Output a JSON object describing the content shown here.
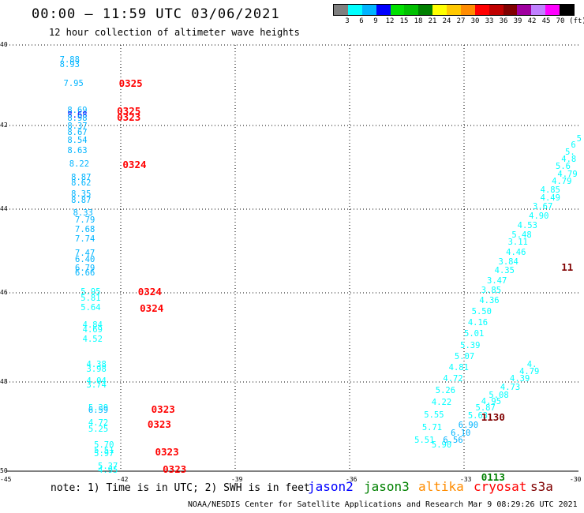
{
  "header": {
    "title": "00:00 – 11:59 UTC 03/06/2021",
    "subtitle": "12 hour collection of altimeter wave heights"
  },
  "legend": {
    "colors": [
      "#7f7f7f",
      "#00ffff",
      "#00b4ff",
      "#0000ff",
      "#00e000",
      "#00c000",
      "#008000",
      "#ffff00",
      "#ffc800",
      "#ff8c00",
      "#ff0000",
      "#c00000",
      "#800000",
      "#a000a0",
      "#c080ff",
      "#ff00ff",
      "#000000"
    ],
    "ticks": [
      "3",
      "6",
      "9",
      "12",
      "15",
      "18",
      "21",
      "24",
      "27",
      "30",
      "33",
      "36",
      "39",
      "42",
      "45",
      "70",
      "(ft)"
    ]
  },
  "map": {
    "lat_labels": [
      "40",
      "42",
      "44",
      "46",
      "48",
      "50"
    ],
    "lon_labels": [
      "-45",
      "-42",
      "-39",
      "-36",
      "-33",
      "-30"
    ],
    "lat_range": [
      40,
      50
    ],
    "lon_range": [
      -45,
      -30
    ],
    "observations": [
      {
        "lon": -43.6,
        "lat": 40.35,
        "text": "7.88",
        "color": "#00b4ff"
      },
      {
        "lon": -43.6,
        "lat": 40.48,
        "text": "8.93",
        "color": "#00b4ff"
      },
      {
        "lon": -43.5,
        "lat": 40.95,
        "text": "7.95",
        "color": "#00b4ff"
      },
      {
        "lon": -43.4,
        "lat": 41.6,
        "text": "8.69",
        "color": "#00b4ff"
      },
      {
        "lon": -43.4,
        "lat": 41.73,
        "text": "8.68",
        "color": "#0000ff"
      },
      {
        "lon": -43.4,
        "lat": 41.8,
        "text": "8.98",
        "color": "#00b4ff"
      },
      {
        "lon": -43.4,
        "lat": 42.0,
        "text": "8.37",
        "color": "#00b4ff"
      },
      {
        "lon": -43.4,
        "lat": 42.15,
        "text": "8.67",
        "color": "#00b4ff"
      },
      {
        "lon": -43.4,
        "lat": 42.34,
        "text": "8.54",
        "color": "#00b4ff"
      },
      {
        "lon": -43.4,
        "lat": 42.58,
        "text": "8.63",
        "color": "#00b4ff"
      },
      {
        "lon": -43.35,
        "lat": 42.9,
        "text": "8.22",
        "color": "#00b4ff"
      },
      {
        "lon": -43.3,
        "lat": 43.22,
        "text": "8.87",
        "color": "#00b4ff"
      },
      {
        "lon": -43.3,
        "lat": 43.36,
        "text": "8.62",
        "color": "#00b4ff"
      },
      {
        "lon": -43.3,
        "lat": 43.63,
        "text": "8.35",
        "color": "#00b4ff"
      },
      {
        "lon": -43.3,
        "lat": 43.77,
        "text": "8.87",
        "color": "#00b4ff"
      },
      {
        "lon": -43.25,
        "lat": 44.07,
        "text": "8.33",
        "color": "#00b4ff"
      },
      {
        "lon": -43.2,
        "lat": 44.25,
        "text": "7.79",
        "color": "#00b4ff"
      },
      {
        "lon": -43.2,
        "lat": 44.48,
        "text": "7.68",
        "color": "#00b4ff"
      },
      {
        "lon": -43.2,
        "lat": 44.7,
        "text": "7.74",
        "color": "#00b4ff"
      },
      {
        "lon": -43.2,
        "lat": 45.03,
        "text": "7.47",
        "color": "#00b4ff"
      },
      {
        "lon": -43.2,
        "lat": 45.18,
        "text": "6.40",
        "color": "#00b4ff"
      },
      {
        "lon": -43.2,
        "lat": 45.4,
        "text": "6.79",
        "color": "#00b4ff"
      },
      {
        "lon": -43.2,
        "lat": 45.5,
        "text": "6.66",
        "color": "#00b4ff"
      },
      {
        "lon": -43.05,
        "lat": 45.97,
        "text": "5.95",
        "color": "#00ffff"
      },
      {
        "lon": -43.05,
        "lat": 46.1,
        "text": "5.81",
        "color": "#00ffff"
      },
      {
        "lon": -43.05,
        "lat": 46.32,
        "text": "5.64",
        "color": "#00ffff"
      },
      {
        "lon": -43.0,
        "lat": 46.7,
        "text": "4.84",
        "color": "#00ffff"
      },
      {
        "lon": -43.0,
        "lat": 46.82,
        "text": "4.69",
        "color": "#00ffff"
      },
      {
        "lon": -43.0,
        "lat": 47.02,
        "text": "4.52",
        "color": "#00ffff"
      },
      {
        "lon": -42.9,
        "lat": 47.6,
        "text": "4.38",
        "color": "#00ffff"
      },
      {
        "lon": -42.9,
        "lat": 47.7,
        "text": "3.98",
        "color": "#00ffff"
      },
      {
        "lon": -42.9,
        "lat": 47.97,
        "text": "4.04",
        "color": "#00ffff"
      },
      {
        "lon": -42.9,
        "lat": 48.05,
        "text": "3.74",
        "color": "#00ffff"
      },
      {
        "lon": -42.85,
        "lat": 48.57,
        "text": "5.39",
        "color": "#00ffff"
      },
      {
        "lon": -42.85,
        "lat": 48.62,
        "text": "6.59",
        "color": "#00b4ff"
      },
      {
        "lon": -42.85,
        "lat": 48.9,
        "text": "4.72",
        "color": "#00ffff"
      },
      {
        "lon": -42.85,
        "lat": 49.05,
        "text": "5.25",
        "color": "#00ffff"
      },
      {
        "lon": -42.7,
        "lat": 49.4,
        "text": "5.70",
        "color": "#00ffff"
      },
      {
        "lon": -42.7,
        "lat": 49.52,
        "text": "5.51",
        "color": "#00ffff"
      },
      {
        "lon": -42.7,
        "lat": 49.6,
        "text": "5.97",
        "color": "#00ffff"
      },
      {
        "lon": -42.6,
        "lat": 49.88,
        "text": "5.37",
        "color": "#00ffff"
      },
      {
        "lon": -42.6,
        "lat": 49.97,
        "text": "4.95",
        "color": "#00ffff"
      },
      {
        "lon": -30.05,
        "lat": 42.3,
        "text": "5",
        "color": "#00ffff"
      },
      {
        "lon": -30.2,
        "lat": 42.45,
        "text": "6",
        "color": "#00ffff"
      },
      {
        "lon": -30.35,
        "lat": 42.63,
        "text": "5.",
        "color": "#00ffff"
      },
      {
        "lon": -30.45,
        "lat": 42.8,
        "text": "4.8",
        "color": "#00ffff"
      },
      {
        "lon": -30.6,
        "lat": 42.97,
        "text": "5.6",
        "color": "#00ffff"
      },
      {
        "lon": -30.55,
        "lat": 43.15,
        "text": "4.79",
        "color": "#00ffff"
      },
      {
        "lon": -30.7,
        "lat": 43.32,
        "text": "4.79",
        "color": "#00ffff"
      },
      {
        "lon": -31.0,
        "lat": 43.52,
        "text": "4.85",
        "color": "#00ffff"
      },
      {
        "lon": -31.0,
        "lat": 43.72,
        "text": "4.49",
        "color": "#00ffff"
      },
      {
        "lon": -31.2,
        "lat": 43.93,
        "text": "3.67",
        "color": "#00ffff"
      },
      {
        "lon": -31.3,
        "lat": 44.15,
        "text": "4.90",
        "color": "#00ffff"
      },
      {
        "lon": -31.6,
        "lat": 44.37,
        "text": "4.53",
        "color": "#00ffff"
      },
      {
        "lon": -31.75,
        "lat": 44.6,
        "text": "5.48",
        "color": "#00ffff"
      },
      {
        "lon": -31.85,
        "lat": 44.78,
        "text": "3.11",
        "color": "#00ffff"
      },
      {
        "lon": -31.9,
        "lat": 45.01,
        "text": "4.46",
        "color": "#00ffff"
      },
      {
        "lon": -32.1,
        "lat": 45.24,
        "text": "3.84",
        "color": "#00ffff"
      },
      {
        "lon": -32.2,
        "lat": 45.46,
        "text": "4.35",
        "color": "#00ffff"
      },
      {
        "lon": -32.4,
        "lat": 45.69,
        "text": "3.47",
        "color": "#00ffff"
      },
      {
        "lon": -32.55,
        "lat": 45.93,
        "text": "3.85",
        "color": "#00ffff"
      },
      {
        "lon": -32.6,
        "lat": 46.16,
        "text": "4.36",
        "color": "#00ffff"
      },
      {
        "lon": -32.8,
        "lat": 46.4,
        "text": "5.50",
        "color": "#00ffff"
      },
      {
        "lon": -32.9,
        "lat": 46.66,
        "text": "4.16",
        "color": "#00ffff"
      },
      {
        "lon": -33.0,
        "lat": 46.9,
        "text": "5.01",
        "color": "#00ffff"
      },
      {
        "lon": -33.1,
        "lat": 47.16,
        "text": "5.39",
        "color": "#00ffff"
      },
      {
        "lon": -33.25,
        "lat": 47.41,
        "text": "5.07",
        "color": "#00ffff"
      },
      {
        "lon": -33.4,
        "lat": 47.66,
        "text": "4.81",
        "color": "#00ffff"
      },
      {
        "lon": -33.55,
        "lat": 47.92,
        "text": "4.72",
        "color": "#00ffff"
      },
      {
        "lon": -33.75,
        "lat": 48.18,
        "text": "5.26",
        "color": "#00ffff"
      },
      {
        "lon": -33.85,
        "lat": 48.45,
        "text": "4.22",
        "color": "#00ffff"
      },
      {
        "lon": -34.05,
        "lat": 48.72,
        "text": "5.55",
        "color": "#00ffff"
      },
      {
        "lon": -34.1,
        "lat": 49.0,
        "text": "5.71",
        "color": "#00ffff"
      },
      {
        "lon": -34.3,
        "lat": 49.3,
        "text": "5.51",
        "color": "#00ffff"
      },
      {
        "lon": -33.85,
        "lat": 49.4,
        "text": "5.90",
        "color": "#00ffff"
      },
      {
        "lon": -33.55,
        "lat": 49.3,
        "text": "6.56",
        "color": "#00b4ff"
      },
      {
        "lon": -33.35,
        "lat": 49.14,
        "text": "6.10",
        "color": "#00b4ff"
      },
      {
        "lon": -33.15,
        "lat": 48.95,
        "text": "6.90",
        "color": "#00b4ff"
      },
      {
        "lon": -32.9,
        "lat": 48.74,
        "text": "5.63",
        "color": "#00ffff"
      },
      {
        "lon": -32.7,
        "lat": 48.57,
        "text": "5.87",
        "color": "#00ffff"
      },
      {
        "lon": -32.55,
        "lat": 48.43,
        "text": "4.95",
        "color": "#00ffff"
      },
      {
        "lon": -32.35,
        "lat": 48.28,
        "text": "5.08",
        "color": "#00ffff"
      },
      {
        "lon": -32.05,
        "lat": 48.1,
        "text": "4.73",
        "color": "#00ffff"
      },
      {
        "lon": -31.8,
        "lat": 47.92,
        "text": "4.39",
        "color": "#00ffff"
      },
      {
        "lon": -31.55,
        "lat": 47.76,
        "text": "4.79",
        "color": "#00ffff"
      },
      {
        "lon": -31.35,
        "lat": 47.6,
        "text": "4.",
        "color": "#00ffff"
      }
    ],
    "times": [
      {
        "lon": -42.05,
        "lat": 40.95,
        "text": "0325",
        "color": "#ff0000"
      },
      {
        "lon": -42.1,
        "lat": 41.62,
        "text": "0325",
        "color": "#ff0000"
      },
      {
        "lon": -42.1,
        "lat": 41.78,
        "text": "0323",
        "color": "#ff0000"
      },
      {
        "lon": -41.95,
        "lat": 42.93,
        "text": "0324",
        "color": "#ff0000"
      },
      {
        "lon": -41.55,
        "lat": 45.97,
        "text": "0324",
        "color": "#ff0000"
      },
      {
        "lon": -41.5,
        "lat": 46.34,
        "text": "0324",
        "color": "#ff0000"
      },
      {
        "lon": -41.2,
        "lat": 48.6,
        "text": "0323",
        "color": "#ff0000"
      },
      {
        "lon": -41.3,
        "lat": 48.94,
        "text": "0323",
        "color": "#ff0000"
      },
      {
        "lon": -41.1,
        "lat": 49.55,
        "text": "0323",
        "color": "#ff0000"
      },
      {
        "lon": -40.9,
        "lat": 49.95,
        "text": "0323",
        "color": "#ff0000"
      },
      {
        "lon": -32.55,
        "lat": 48.77,
        "text": "1130",
        "color": "#800000"
      },
      {
        "lon": -30.45,
        "lat": 45.37,
        "text": "11",
        "color": "#800000"
      },
      {
        "lon": -32.55,
        "lat": 50.13,
        "text": "0113",
        "color": "#008000"
      }
    ]
  },
  "footer": {
    "note": "note:  1) Time is in UTC;  2) SWH is in feet",
    "satellites": [
      {
        "name": "jason2",
        "color": "#0000ff"
      },
      {
        "name": "jason3",
        "color": "#008000"
      },
      {
        "name": "altika",
        "color": "#ff8c00"
      },
      {
        "name": "cryosat",
        "color": "#ff0000"
      },
      {
        "name": "s3a",
        "color": "#800000"
      }
    ],
    "credit": "NOAA/NESDIS Center for Satellite Applications and Research    Mar  9 08:29:26 UTC 2021"
  }
}
